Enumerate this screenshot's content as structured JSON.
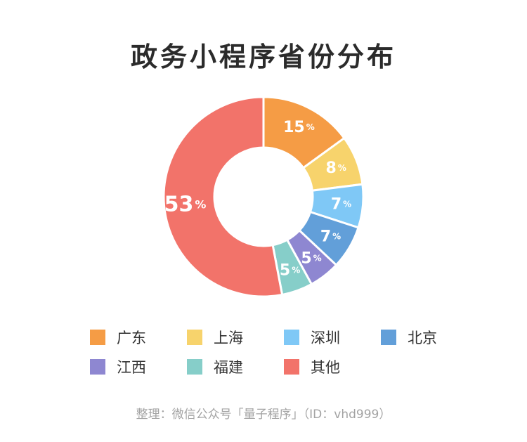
{
  "chart_data": {
    "type": "pie",
    "title": "政务小程序省份分布",
    "unit": "%",
    "categories": [
      "广东",
      "上海",
      "深圳",
      "北京",
      "江西",
      "福建",
      "其他"
    ],
    "values": [
      15,
      8,
      7,
      7,
      5,
      5,
      53
    ],
    "colors": [
      "#F59C45",
      "#F7D36C",
      "#7FC8F6",
      "#629FD9",
      "#8E87D1",
      "#86CEC9",
      "#F2736A"
    ],
    "legend_position": "bottom",
    "donut": true
  },
  "footer": "整理：微信公众号「量子程序」（ID：vhd999）"
}
